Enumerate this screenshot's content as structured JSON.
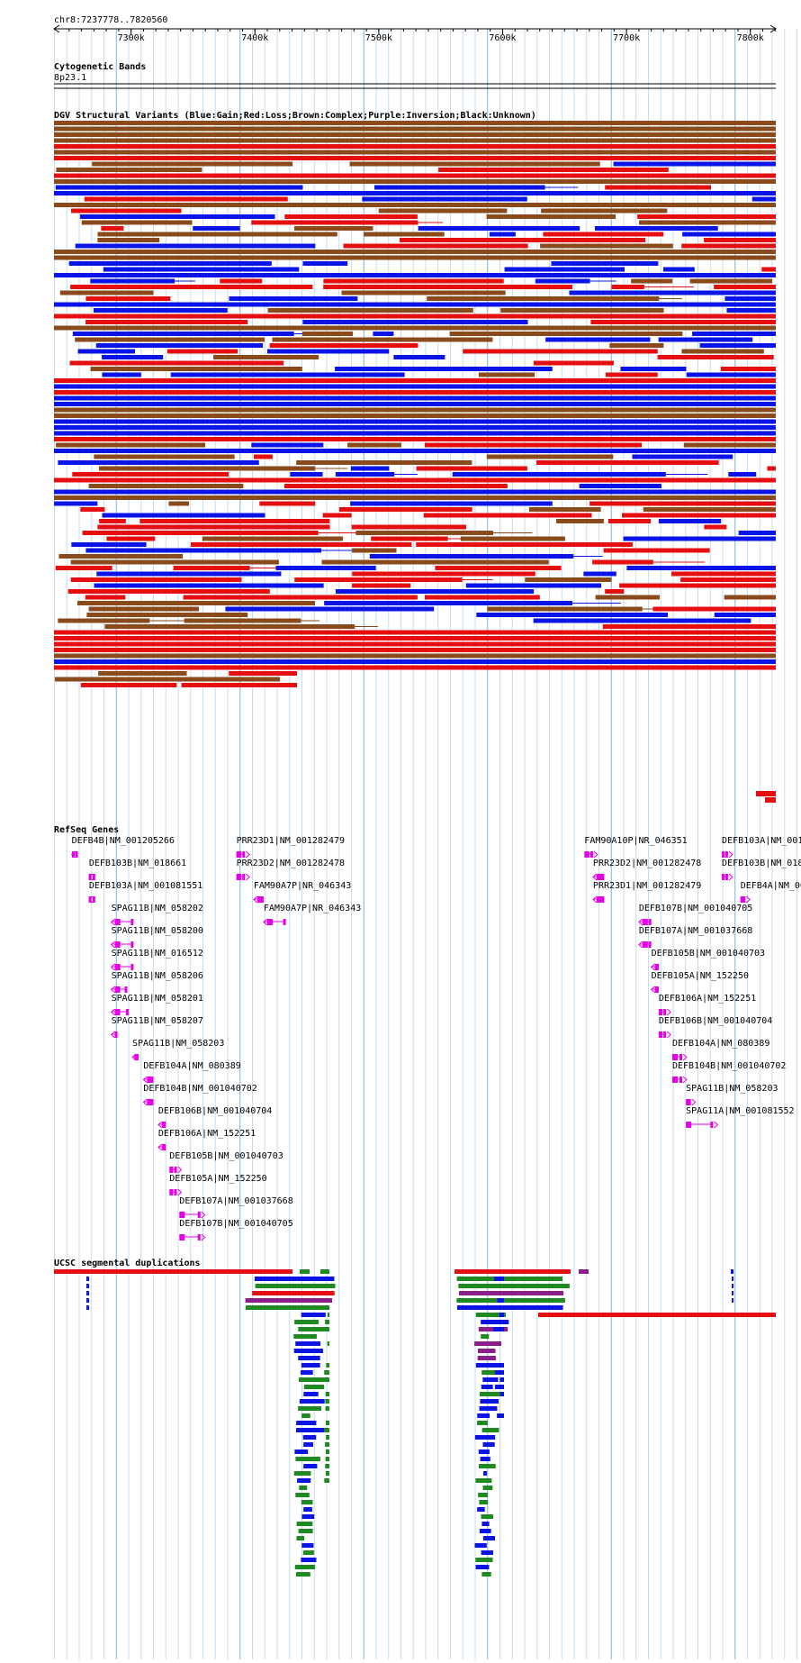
{
  "range_label": "chr8:7237778..7820560",
  "view": {
    "start": 7237778,
    "end": 7820560
  },
  "ruler": {
    "ticks": [
      {
        "pos": 7300000,
        "label": "7300k"
      },
      {
        "pos": 7400000,
        "label": "7400k"
      },
      {
        "pos": 7500000,
        "label": "7500k"
      },
      {
        "pos": 7600000,
        "label": "7600k"
      },
      {
        "pos": 7700000,
        "label": "7700k"
      },
      {
        "pos": 7800000,
        "label": "7800k"
      }
    ]
  },
  "cytoband": {
    "title": "Cytogenetic Bands",
    "band": "8p23.1"
  },
  "dgv": {
    "title": "DGV Structural Variants (Blue:Gain;Red:Loss;Brown:Complex;Purple:Inversion;Black:Unknown)",
    "colors": {
      "gain": "#0a14e6",
      "loss": "#e60f0f",
      "complex": "#8b4a1c",
      "inversion": "#800080",
      "unknown": "#000000"
    }
  },
  "refseq": {
    "title": "RefSeq Genes",
    "color": "#e600e6",
    "genes": [
      {
        "label": "DEFB4B|NM_001205266",
        "start": 7252000,
        "end": 7254500,
        "strand": "-"
      },
      {
        "label": "DEFB103B|NM_018661",
        "start": 7266000,
        "end": 7268000,
        "strand": "-"
      },
      {
        "label": "DEFB103A|NM_001081551",
        "start": 7266000,
        "end": 7268000,
        "strand": "-"
      },
      {
        "label": "SPAG11B|NM_058202",
        "start": 7284000,
        "end": 7302000,
        "strand": "-"
      },
      {
        "label": "SPAG11B|NM_058200",
        "start": 7284000,
        "end": 7302000,
        "strand": "-"
      },
      {
        "label": "SPAG11B|NM_016512",
        "start": 7284000,
        "end": 7302000,
        "strand": "-"
      },
      {
        "label": "SPAG11B|NM_058206",
        "start": 7284000,
        "end": 7297000,
        "strand": "-"
      },
      {
        "label": "SPAG11B|NM_058201",
        "start": 7284000,
        "end": 7298000,
        "strand": "-"
      },
      {
        "label": "SPAG11B|NM_058207",
        "start": 7284000,
        "end": 7289000,
        "strand": "-"
      },
      {
        "label": "SPAG11B|NM_058203",
        "start": 7301000,
        "end": 7305000,
        "strand": "-"
      },
      {
        "label": "DEFB104A|NM_080389",
        "start": 7310000,
        "end": 7318000,
        "strand": "-"
      },
      {
        "label": "DEFB104B|NM_001040702",
        "start": 7310000,
        "end": 7318000,
        "strand": "-"
      },
      {
        "label": "DEFB106B|NM_001040704",
        "start": 7322000,
        "end": 7328000,
        "strand": "-"
      },
      {
        "label": "DEFB106A|NM_152251",
        "start": 7322000,
        "end": 7328000,
        "strand": "-"
      },
      {
        "label": "DEFB105B|NM_001040703",
        "start": 7331000,
        "end": 7337000,
        "strand": "+"
      },
      {
        "label": "DEFB105A|NM_152250",
        "start": 7331000,
        "end": 7337000,
        "strand": "+"
      },
      {
        "label": "DEFB107A|NM_001037668",
        "start": 7339000,
        "end": 7356000,
        "strand": "+"
      },
      {
        "label": "DEFB107B|NM_001040705",
        "start": 7339000,
        "end": 7356000,
        "strand": "+"
      },
      {
        "label": "PRR23D1|NM_001282479",
        "start": 7385000,
        "end": 7392000,
        "strand": "+"
      },
      {
        "label": "PRR23D2|NM_001282478",
        "start": 7385000,
        "end": 7392000,
        "strand": "+"
      },
      {
        "label": "FAM90A7P|NR_046343",
        "start": 7399000,
        "end": 7407000,
        "strand": "-"
      },
      {
        "label": "FAM90A7P|NR_046343",
        "start": 7407000,
        "end": 7425000,
        "strand": "-"
      },
      {
        "label": "FAM90A10P|NR_046351",
        "start": 7666000,
        "end": 7673000,
        "strand": "+"
      },
      {
        "label": "PRR23D2|NM_001282478",
        "start": 7673000,
        "end": 7682000,
        "strand": "-"
      },
      {
        "label": "PRR23D1|NM_001282479",
        "start": 7673000,
        "end": 7682000,
        "strand": "-"
      },
      {
        "label": "DEFB107B|NM_001040705",
        "start": 7710000,
        "end": 7720000,
        "strand": "-"
      },
      {
        "label": "DEFB107A|NM_001037668",
        "start": 7710000,
        "end": 7720000,
        "strand": "-"
      },
      {
        "label": "DEFB105B|NM_001040703",
        "start": 7720000,
        "end": 7726000,
        "strand": "-"
      },
      {
        "label": "DEFB105A|NM_152250",
        "start": 7720000,
        "end": 7726000,
        "strand": "-"
      },
      {
        "label": "DEFB106A|NM_152251",
        "start": 7726000,
        "end": 7732000,
        "strand": "+"
      },
      {
        "label": "DEFB106B|NM_001040704",
        "start": 7726000,
        "end": 7732000,
        "strand": "+"
      },
      {
        "label": "DEFB104A|NM_080389",
        "start": 7737000,
        "end": 7745000,
        "strand": "+"
      },
      {
        "label": "DEFB104B|NM_001040702",
        "start": 7737000,
        "end": 7745000,
        "strand": "+"
      },
      {
        "label": "SPAG11B|NM_058203",
        "start": 7748000,
        "end": 7752000,
        "strand": "+"
      },
      {
        "label": "SPAG11A|NM_001081552",
        "start": 7748000,
        "end": 7770000,
        "strand": "+"
      },
      {
        "label": "DEFB103A|NM_001",
        "start": 7777000,
        "end": 7782000,
        "strand": "+"
      },
      {
        "label": "DEFB103B|NM_018",
        "start": 7777000,
        "end": 7782000,
        "strand": "+"
      },
      {
        "label": "DEFB4A|NM_00",
        "start": 7792000,
        "end": 7796000,
        "strand": "+"
      }
    ]
  },
  "segdups": {
    "title": "UCSC segmental duplications",
    "colors": {
      "red": "#e60f0f",
      "blue": "#0a14e6",
      "green": "#1f8a1f",
      "purple": "#8a1f8a"
    }
  }
}
